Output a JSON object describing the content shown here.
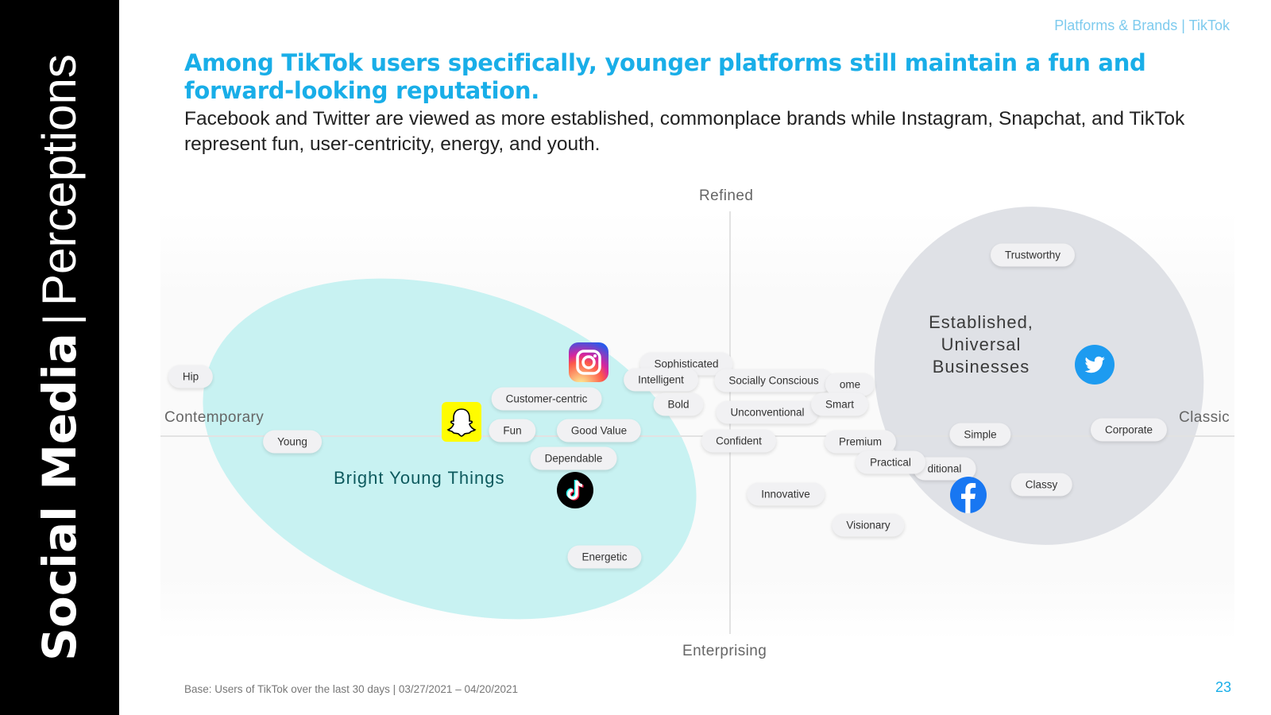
{
  "sidebar": {
    "title_bold": "Social Media",
    "separator": "|",
    "title_light": "Perceptions"
  },
  "header": {
    "section_label": "Platforms & Brands | TikTok",
    "headline": "Among TikTok users specifically, younger platforms still maintain a fun and forward-looking reputation.",
    "subhead": "Facebook and Twitter are viewed as more established, commonplace brands while Instagram, Snapchat, and TikTok represent fun, user-centricity, energy, and youth."
  },
  "map": {
    "axes": {
      "top": "Refined",
      "bottom": "Enterprising",
      "left": "Contemporary",
      "right": "Classic"
    },
    "clusters": {
      "young": "Bright Young Things",
      "established": "Established, Universal Businesses"
    },
    "attributes": {
      "hip": "Hip",
      "young": "Young",
      "customer_centric": "Customer-centric",
      "fun": "Fun",
      "good_value": "Good Value",
      "dependable": "Dependable",
      "energetic": "Energetic",
      "sophisticated": "Sophisticated",
      "intelligent": "Intelligent",
      "bold": "Bold",
      "socially_conscious": "Socially Conscious",
      "unconventional": "Unconventional",
      "confident": "Confident",
      "innovative": "Innovative",
      "visionary": "Visionary",
      "wholesome_partial": "ome",
      "smart": "Smart",
      "premium": "Premium",
      "practical": "Practical",
      "traditional_partial": "ditional",
      "simple": "Simple",
      "trustworthy": "Trustworthy",
      "corporate": "Corporate",
      "classy": "Classy"
    },
    "logos": {
      "instagram": "instagram-icon",
      "snapchat": "snapchat-icon",
      "tiktok": "tiktok-icon",
      "facebook": "facebook-icon",
      "twitter": "twitter-icon"
    }
  },
  "footer": {
    "base": "Base: Users of TikTok over the last 30 days | 03/27/2021 – 04/20/2021",
    "page_number": "23"
  },
  "colors": {
    "accent": "#19aee8",
    "young_cluster": "#c8f2f2",
    "established_cluster": "#dfe1e6",
    "sidebar": "#000000"
  }
}
